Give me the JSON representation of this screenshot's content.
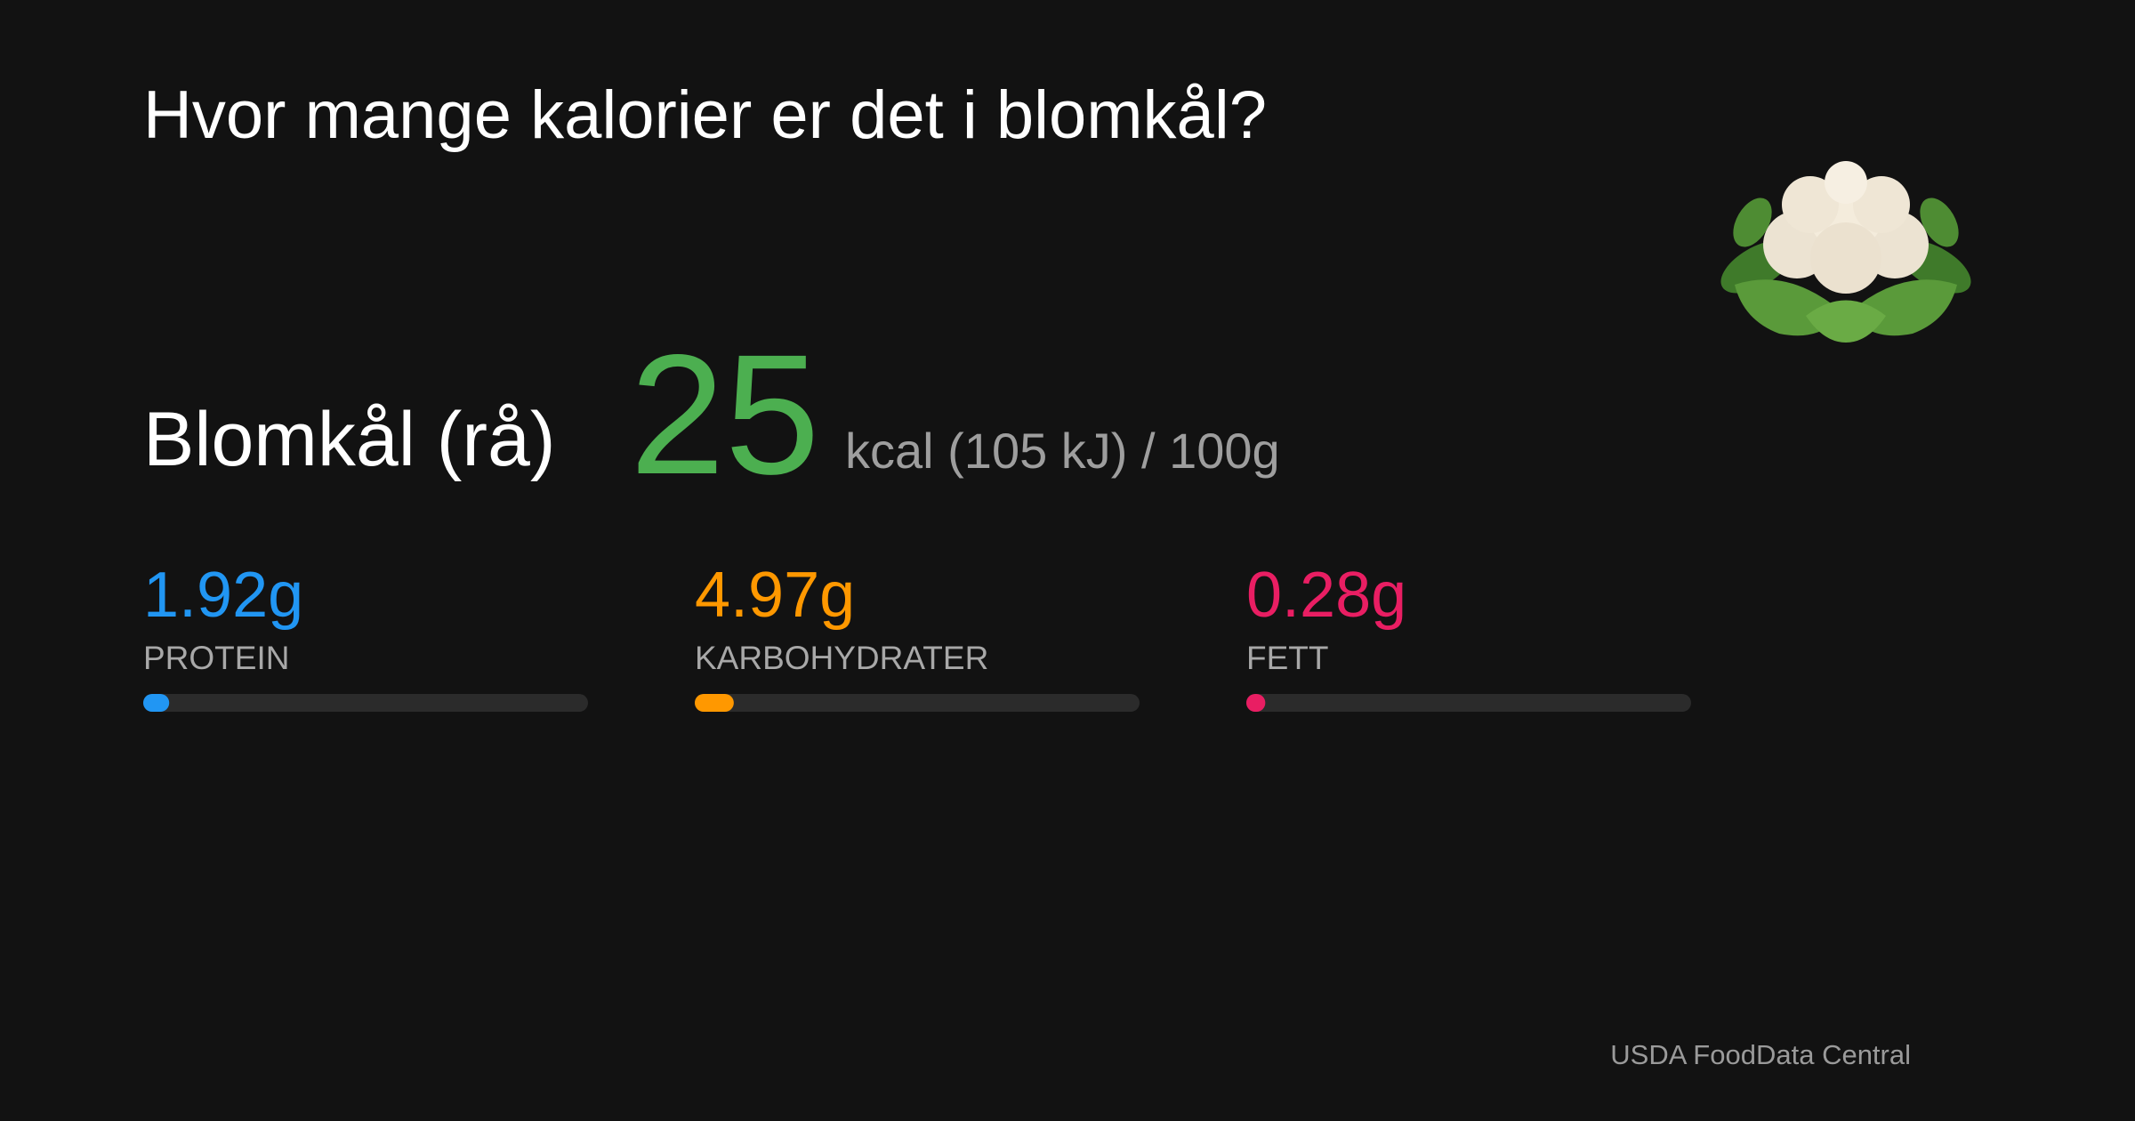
{
  "title": "Hvor mange kalorier er det i blomkål?",
  "food": {
    "name": "Blomkål (rå)",
    "calories": 25,
    "unit": "kcal (105 kJ) / 100g",
    "color": "#4caf50"
  },
  "nutrients": {
    "xlim": [
      0,
      100
    ],
    "track_color": "#2b2b2b",
    "items": [
      {
        "name": "PROTEIN",
        "value": {
          "value": 1.92,
          "label": "1.92g"
        },
        "color": "#2196f3"
      },
      {
        "name": "KARBOHYDRATER",
        "value": {
          "value": 4.97,
          "label": "4.97g"
        },
        "color": "#ff9800"
      },
      {
        "name": "FETT",
        "value": {
          "value": 0.28,
          "label": "0.28g"
        },
        "color": "#e91e63"
      }
    ]
  },
  "source": "USDA FoodData Central"
}
